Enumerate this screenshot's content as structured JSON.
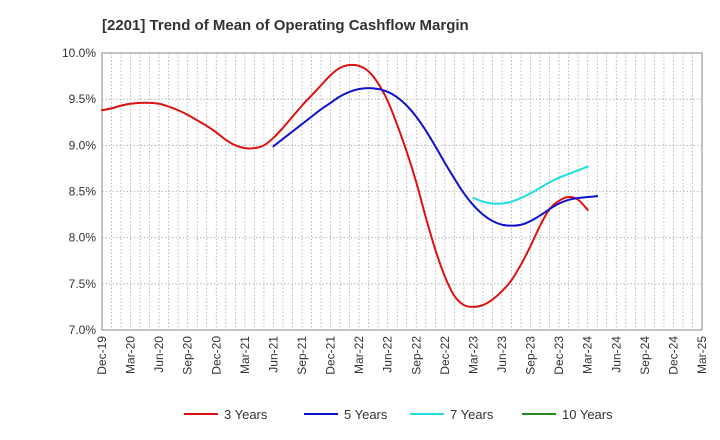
{
  "chart_data": {
    "type": "line",
    "title": "[2201]  Trend of Mean of Operating Cashflow Margin",
    "xlabel": "",
    "ylabel": "",
    "ylim": [
      7.0,
      10.0
    ],
    "y_ticks": [
      "7.0%",
      "7.5%",
      "8.0%",
      "8.5%",
      "9.0%",
      "9.5%",
      "10.0%"
    ],
    "y_tick_values": [
      7.0,
      7.5,
      8.0,
      8.5,
      9.0,
      9.5,
      10.0
    ],
    "x_ticks": [
      "Dec-19",
      "Mar-20",
      "Jun-20",
      "Sep-20",
      "Dec-20",
      "Mar-21",
      "Jun-21",
      "Sep-21",
      "Dec-21",
      "Mar-22",
      "Jun-22",
      "Sep-22",
      "Dec-22",
      "Mar-23",
      "Jun-23",
      "Sep-23",
      "Dec-23",
      "Mar-24",
      "Jun-24",
      "Sep-24",
      "Dec-24",
      "Mar-25"
    ],
    "grid": true,
    "legend_position": "bottom",
    "series": [
      {
        "name": "3 Years",
        "color": "#dd1111",
        "start_index": 0,
        "values": [
          9.38,
          9.4,
          9.43,
          9.45,
          9.46,
          9.46,
          9.45,
          9.42,
          9.38,
          9.33,
          9.27,
          9.21,
          9.14,
          9.06,
          9.0,
          8.97,
          8.97,
          9.0,
          9.08,
          9.19,
          9.31,
          9.43,
          9.54,
          9.65,
          9.76,
          9.84,
          9.87,
          9.86,
          9.8,
          9.67,
          9.48,
          9.22,
          8.93,
          8.6,
          8.22,
          7.87,
          7.58,
          7.37,
          7.27,
          7.25,
          7.27,
          7.33,
          7.42,
          7.54,
          7.71,
          7.91,
          8.13,
          8.31,
          8.4,
          8.44,
          8.41,
          8.3
        ]
      },
      {
        "name": "5 Years",
        "color": "#1111cc",
        "start_index": 18,
        "values": [
          8.99,
          9.07,
          9.15,
          9.23,
          9.31,
          9.39,
          9.46,
          9.53,
          9.58,
          9.61,
          9.62,
          9.61,
          9.58,
          9.52,
          9.43,
          9.31,
          9.16,
          8.99,
          8.81,
          8.64,
          8.48,
          8.35,
          8.25,
          8.18,
          8.14,
          8.13,
          8.14,
          8.18,
          8.24,
          8.31,
          8.37,
          8.41,
          8.43,
          8.44,
          8.45
        ]
      },
      {
        "name": "7 Years",
        "color": "#22dddd",
        "start_index": 39,
        "values": [
          8.43,
          8.39,
          8.37,
          8.37,
          8.39,
          8.43,
          8.48,
          8.54,
          8.6,
          8.65,
          8.69,
          8.73,
          8.77
        ]
      },
      {
        "name": "10 Years",
        "color": "#228822",
        "start_index": 0,
        "values": []
      }
    ]
  }
}
